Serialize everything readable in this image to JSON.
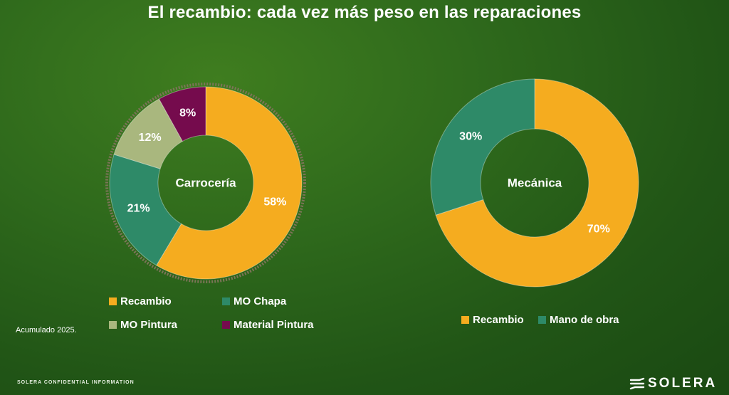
{
  "title": "El recambio: cada vez más peso en las reparaciones",
  "note": "Acumulado 2025.",
  "footer": {
    "confidential": "SOLERA CONFIDENTIAL INFORMATION",
    "brand": "SOLERA"
  },
  "colors": {
    "recambio": "#f5ac1f",
    "mo_chapa": "#2e8a68",
    "mo_pintura": "#a9b77e",
    "material_pintura": "#750b4d"
  },
  "chart_data": [
    {
      "type": "pie",
      "center_label": "Carrocería",
      "categories": [
        "Recambio",
        "MO Chapa",
        "MO Pintura",
        "Material Pintura"
      ],
      "values": [
        58,
        21,
        12,
        8
      ],
      "labels": [
        "58%",
        "21%",
        "12%",
        "8%"
      ],
      "colors": [
        "#f5ac1f",
        "#2e8a68",
        "#a9b77e",
        "#750b4d"
      ],
      "legend_position": "bottom"
    },
    {
      "type": "pie",
      "center_label": "Mecánica",
      "categories": [
        "Recambio",
        "Mano de obra"
      ],
      "values": [
        70,
        30
      ],
      "labels": [
        "70%",
        "30%"
      ],
      "colors": [
        "#f5ac1f",
        "#2e8a68"
      ],
      "legend_position": "bottom"
    }
  ]
}
